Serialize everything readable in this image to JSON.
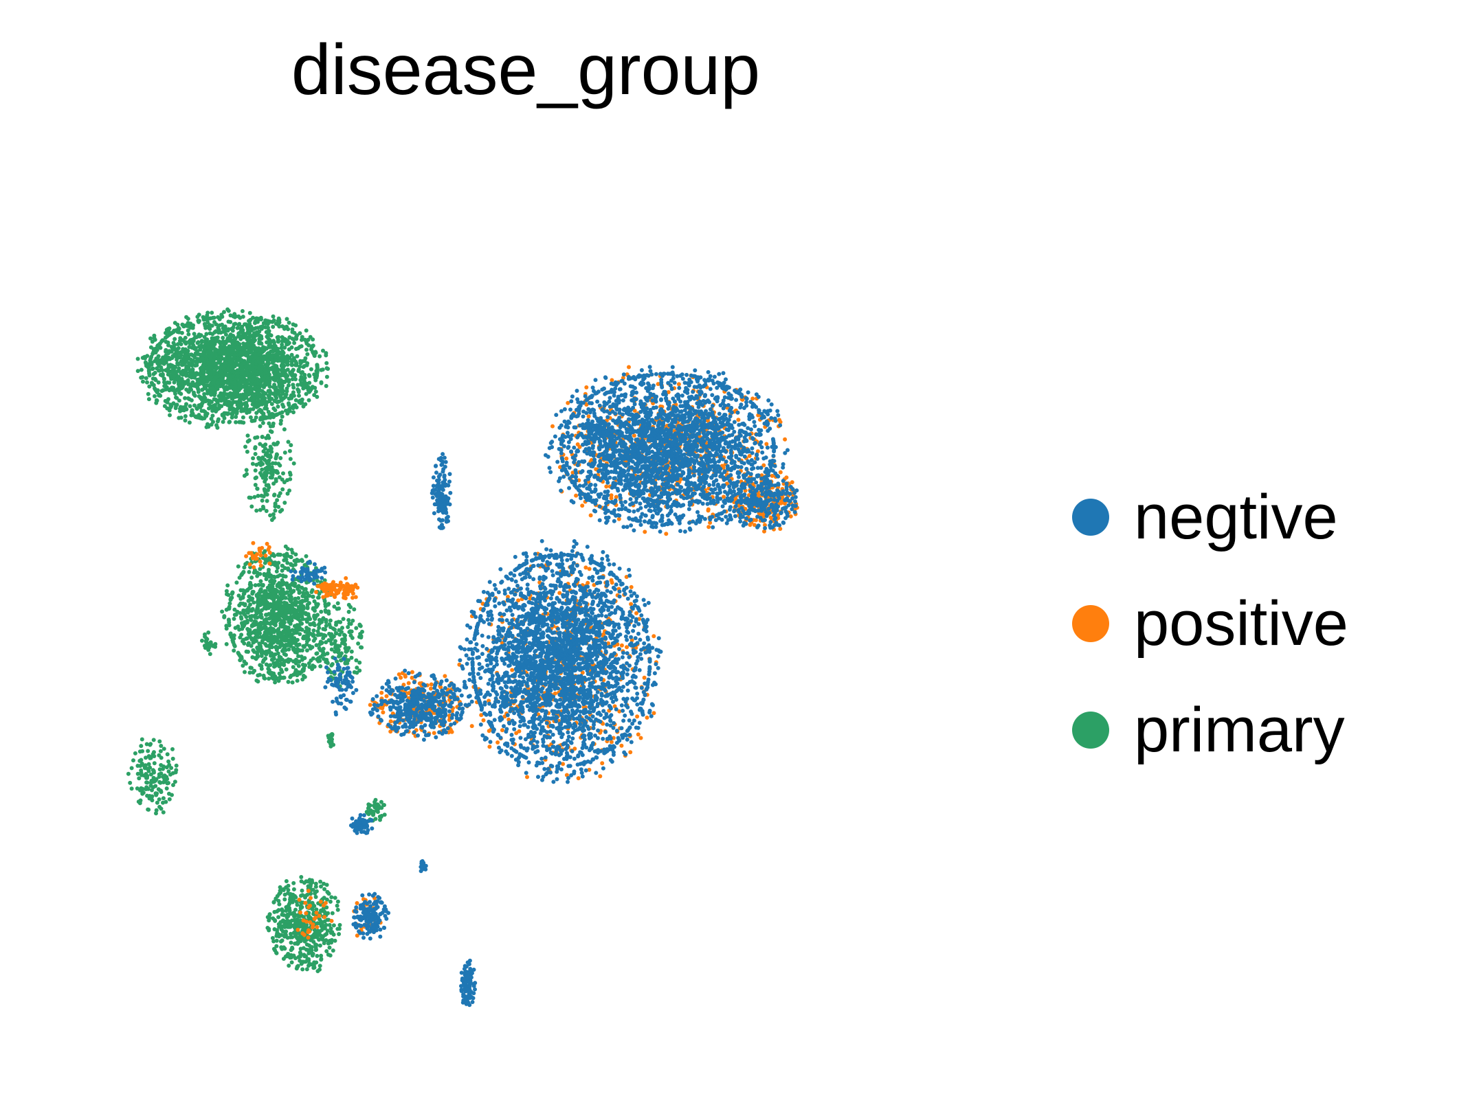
{
  "chart_data": {
    "type": "scatter",
    "title": "disease_group",
    "xlabel": "",
    "ylabel": "",
    "axes_visible": false,
    "grid": false,
    "legend_placement": "right",
    "series": [
      {
        "name": "negtive",
        "color": "#1f77b4",
        "clusters": [
          {
            "cx": 0.66,
            "cy": 0.31,
            "rx": 0.12,
            "ry": 0.085,
            "n": 2600
          },
          {
            "cx": 0.58,
            "cy": 0.29,
            "rx": 0.02,
            "ry": 0.01,
            "n": 60
          },
          {
            "cx": 0.77,
            "cy": 0.37,
            "rx": 0.035,
            "ry": 0.03,
            "n": 220
          },
          {
            "cx": 0.54,
            "cy": 0.55,
            "rx": 0.1,
            "ry": 0.12,
            "n": 2900
          },
          {
            "cx": 0.38,
            "cy": 0.6,
            "rx": 0.05,
            "ry": 0.035,
            "n": 420
          },
          {
            "cx": 0.29,
            "cy": 0.58,
            "rx": 0.018,
            "ry": 0.03,
            "n": 70
          },
          {
            "cx": 0.255,
            "cy": 0.45,
            "rx": 0.02,
            "ry": 0.012,
            "n": 50
          },
          {
            "cx": 0.315,
            "cy": 0.735,
            "rx": 0.012,
            "ry": 0.01,
            "n": 70
          },
          {
            "cx": 0.325,
            "cy": 0.84,
            "rx": 0.018,
            "ry": 0.025,
            "n": 150
          },
          {
            "cx": 0.435,
            "cy": 0.915,
            "rx": 0.008,
            "ry": 0.025,
            "n": 110
          },
          {
            "cx": 0.385,
            "cy": 0.785,
            "rx": 0.005,
            "ry": 0.008,
            "n": 15
          },
          {
            "cx": 0.405,
            "cy": 0.36,
            "rx": 0.01,
            "ry": 0.04,
            "n": 120
          }
        ]
      },
      {
        "name": "positive",
        "color": "#ff7f0e",
        "clusters": [
          {
            "cx": 0.66,
            "cy": 0.31,
            "rx": 0.12,
            "ry": 0.085,
            "n": 550
          },
          {
            "cx": 0.77,
            "cy": 0.37,
            "rx": 0.035,
            "ry": 0.03,
            "n": 180
          },
          {
            "cx": 0.54,
            "cy": 0.56,
            "rx": 0.1,
            "ry": 0.12,
            "n": 450
          },
          {
            "cx": 0.38,
            "cy": 0.6,
            "rx": 0.05,
            "ry": 0.035,
            "n": 200
          },
          {
            "cx": 0.29,
            "cy": 0.47,
            "rx": 0.025,
            "ry": 0.012,
            "n": 90
          },
          {
            "cx": 0.2,
            "cy": 0.43,
            "rx": 0.015,
            "ry": 0.015,
            "n": 25
          },
          {
            "cx": 0.26,
            "cy": 0.84,
            "rx": 0.02,
            "ry": 0.03,
            "n": 30
          },
          {
            "cx": 0.32,
            "cy": 0.84,
            "rx": 0.02,
            "ry": 0.025,
            "n": 30
          }
        ]
      },
      {
        "name": "primary",
        "color": "#2ca065",
        "clusters": [
          {
            "cx": 0.17,
            "cy": 0.22,
            "rx": 0.095,
            "ry": 0.06,
            "n": 2300
          },
          {
            "cx": 0.21,
            "cy": 0.33,
            "rx": 0.025,
            "ry": 0.06,
            "n": 180
          },
          {
            "cx": 0.22,
            "cy": 0.5,
            "rx": 0.055,
            "ry": 0.07,
            "n": 1150
          },
          {
            "cx": 0.29,
            "cy": 0.53,
            "rx": 0.025,
            "ry": 0.045,
            "n": 160
          },
          {
            "cx": 0.08,
            "cy": 0.68,
            "rx": 0.025,
            "ry": 0.04,
            "n": 150
          },
          {
            "cx": 0.14,
            "cy": 0.53,
            "rx": 0.01,
            "ry": 0.012,
            "n": 25
          },
          {
            "cx": 0.25,
            "cy": 0.85,
            "rx": 0.04,
            "ry": 0.05,
            "n": 480
          },
          {
            "cx": 0.33,
            "cy": 0.72,
            "rx": 0.012,
            "ry": 0.012,
            "n": 40
          },
          {
            "cx": 0.28,
            "cy": 0.64,
            "rx": 0.005,
            "ry": 0.01,
            "n": 15
          }
        ]
      }
    ]
  }
}
